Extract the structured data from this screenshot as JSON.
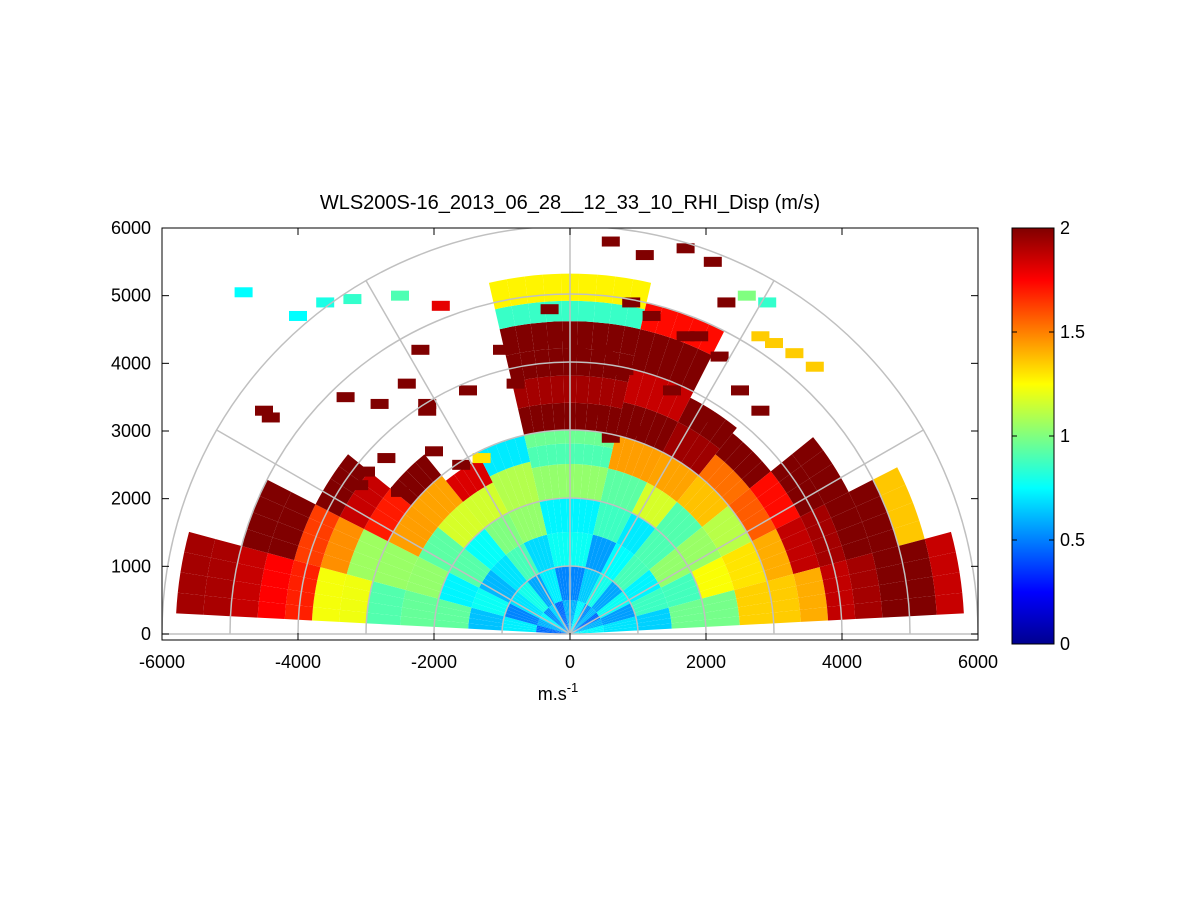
{
  "chart_data": {
    "type": "heatmap",
    "subtype": "polar-RHI",
    "title": "WLS200S-16_2013_06_28__12_33_10_RHI_Disp (m/s)",
    "xlabel": "m.s",
    "xlabel_superscript": "-1",
    "xlim": [
      -6000,
      6000
    ],
    "ylim": [
      0,
      6000
    ],
    "x_ticks": [
      "-6000",
      "-4000",
      "-2000",
      "0",
      "2000",
      "4000",
      "6000"
    ],
    "y_ticks": [
      "0",
      "1000",
      "2000",
      "3000",
      "4000",
      "5000",
      "6000"
    ],
    "x_tick_values": [
      -6000,
      -4000,
      -2000,
      0,
      2000,
      4000,
      6000
    ],
    "y_tick_values": [
      0,
      1000,
      2000,
      3000,
      4000,
      5000,
      6000
    ],
    "polar_grid": {
      "range_rings": [
        1000,
        2000,
        3000,
        4000,
        5000,
        6000
      ],
      "spokes_deg": [
        0,
        30,
        60,
        90,
        120,
        150,
        180
      ],
      "grid_color": "#c0c0c0"
    },
    "colorbar": {
      "colormap": "jet",
      "clim": [
        0,
        2
      ],
      "ticks": [
        "0",
        "0.5",
        "1",
        "1.5",
        "2"
      ],
      "tick_values": [
        0,
        0.5,
        1,
        1.5,
        2
      ]
    },
    "sectors": [
      {
        "az": [
          165,
          177
        ],
        "rings": [
          [
            0,
            0.6
          ],
          [
            500,
            0.65
          ],
          [
            1000,
            0.7
          ],
          [
            1500,
            0.8
          ],
          [
            2000,
            0.95
          ],
          [
            2500,
            1.05
          ],
          [
            3000,
            1.15
          ],
          [
            3400,
            1.3
          ],
          [
            3800,
            1.55
          ],
          [
            4200,
            1.75
          ],
          [
            4600,
            2.0
          ],
          [
            5000,
            1.85
          ],
          [
            5400,
            2.0
          ]
        ]
      },
      {
        "az": [
          153,
          165
        ],
        "rings": [
          [
            0,
            0.6
          ],
          [
            500,
            0.65
          ],
          [
            1000,
            0.7
          ],
          [
            1500,
            0.8
          ],
          [
            2000,
            0.9
          ],
          [
            2500,
            1.05
          ],
          [
            3000,
            1.2
          ],
          [
            3400,
            1.4
          ],
          [
            3800,
            1.7
          ],
          [
            4200,
            2.0
          ],
          [
            4600,
            2.0
          ]
        ]
      },
      {
        "az": [
          141,
          153
        ],
        "rings": [
          [
            0,
            0.6
          ],
          [
            500,
            0.7
          ],
          [
            1000,
            0.75
          ],
          [
            1500,
            0.85
          ],
          [
            2000,
            1.0
          ],
          [
            2500,
            1.3
          ],
          [
            3000,
            1.7
          ],
          [
            3400,
            2.0
          ],
          [
            3800,
            2.0
          ]
        ]
      },
      {
        "az": [
          129,
          141
        ],
        "rings": [
          [
            0,
            0.6
          ],
          [
            500,
            0.65
          ],
          [
            1000,
            0.7
          ],
          [
            1500,
            0.9
          ],
          [
            2000,
            1.1
          ],
          [
            2500,
            1.5
          ],
          [
            3000,
            2.0
          ]
        ]
      },
      {
        "az": [
          117,
          129
        ],
        "rings": [
          [
            0,
            0.6
          ],
          [
            500,
            0.65
          ],
          [
            1000,
            0.75
          ],
          [
            1500,
            1.0
          ],
          [
            2000,
            1.3
          ],
          [
            2500,
            1.75
          ]
        ]
      },
      {
        "az": [
          103,
          117
        ],
        "rings": [
          [
            0,
            0.6
          ],
          [
            500,
            0.65
          ],
          [
            1000,
            0.75
          ],
          [
            1500,
            0.9
          ],
          [
            2000,
            1.1
          ],
          [
            2600,
            0.85
          ]
        ]
      },
      {
        "az": [
          77,
          103
        ],
        "rings": [
          [
            0,
            0.6
          ],
          [
            500,
            0.65
          ],
          [
            1000,
            0.7
          ],
          [
            1500,
            0.8
          ],
          [
            2000,
            0.9
          ],
          [
            2500,
            0.9
          ],
          [
            2800,
            1.1
          ],
          [
            3000,
            2.0
          ],
          [
            3400,
            2.0
          ],
          [
            3800,
            2.0
          ],
          [
            4200,
            2.0
          ],
          [
            4600,
            1.0
          ],
          [
            4900,
            1.2
          ]
        ]
      },
      {
        "az": [
          63,
          77
        ],
        "rings": [
          [
            0,
            0.6
          ],
          [
            500,
            0.65
          ],
          [
            1000,
            0.7
          ],
          [
            1500,
            0.8
          ],
          [
            2000,
            1.0
          ],
          [
            2500,
            1.3
          ],
          [
            3000,
            2.0
          ],
          [
            3500,
            2.0
          ],
          [
            4000,
            2.0
          ],
          [
            4600,
            1.8
          ]
        ]
      },
      {
        "az": [
          51,
          63
        ],
        "rings": [
          [
            0,
            0.6
          ],
          [
            500,
            0.65
          ],
          [
            1000,
            0.75
          ],
          [
            1500,
            0.85
          ],
          [
            2000,
            1.1
          ],
          [
            2500,
            1.5
          ],
          [
            3000,
            1.8
          ],
          [
            3500,
            2.0
          ]
        ]
      },
      {
        "az": [
          39,
          51
        ],
        "rings": [
          [
            0,
            0.55
          ],
          [
            500,
            0.65
          ],
          [
            1000,
            0.75
          ],
          [
            1500,
            0.9
          ],
          [
            2000,
            1.05
          ],
          [
            2500,
            1.3
          ],
          [
            3000,
            1.6
          ],
          [
            3400,
            1.9
          ]
        ]
      },
      {
        "az": [
          27,
          39
        ],
        "rings": [
          [
            0,
            0.6
          ],
          [
            500,
            0.7
          ],
          [
            1000,
            0.8
          ],
          [
            1500,
            0.9
          ],
          [
            2000,
            1.05
          ],
          [
            2500,
            1.25
          ],
          [
            3000,
            1.5
          ],
          [
            3400,
            1.8
          ],
          [
            3800,
            2.0
          ],
          [
            4200,
            2.0
          ]
        ]
      },
      {
        "az": [
          15,
          27
        ],
        "rings": [
          [
            0,
            0.6
          ],
          [
            500,
            0.7
          ],
          [
            1000,
            0.8
          ],
          [
            1500,
            0.95
          ],
          [
            2000,
            1.1
          ],
          [
            2500,
            1.3
          ],
          [
            3000,
            1.55
          ],
          [
            3400,
            1.8
          ],
          [
            3800,
            2.0
          ],
          [
            4200,
            2.0
          ],
          [
            4600,
            2.0
          ],
          [
            5000,
            1.5
          ]
        ]
      },
      {
        "az": [
          3,
          15
        ],
        "rings": [
          [
            0,
            0.6
          ],
          [
            500,
            0.7
          ],
          [
            1000,
            0.8
          ],
          [
            1500,
            0.9
          ],
          [
            2000,
            1.05
          ],
          [
            2500,
            1.2
          ],
          [
            3000,
            1.35
          ],
          [
            3400,
            1.55
          ],
          [
            3800,
            1.8
          ],
          [
            4200,
            2.0
          ],
          [
            4600,
            2.0
          ],
          [
            5000,
            2.0
          ],
          [
            5400,
            2.0
          ]
        ]
      }
    ],
    "sparse_cells": [
      {
        "x": -2500,
        "y": 2100,
        "v": 2.0
      },
      {
        "x": -3100,
        "y": 2200,
        "v": 2.0
      },
      {
        "x": -2700,
        "y": 2600,
        "v": 2.0
      },
      {
        "x": -2000,
        "y": 2700,
        "v": 2.0
      },
      {
        "x": -1600,
        "y": 2500,
        "v": 2.0
      },
      {
        "x": -1300,
        "y": 2600,
        "v": 1.3
      },
      {
        "x": -800,
        "y": 3700,
        "v": 2.0
      },
      {
        "x": -1500,
        "y": 3600,
        "v": 2.0
      },
      {
        "x": -2100,
        "y": 3400,
        "v": 2.0
      },
      {
        "x": -2400,
        "y": 3700,
        "v": 2.0
      },
      {
        "x": -2800,
        "y": 3400,
        "v": 2.0
      },
      {
        "x": -4400,
        "y": 3200,
        "v": 2.0
      },
      {
        "x": -3300,
        "y": 3500,
        "v": 2.0
      },
      {
        "x": -2200,
        "y": 4200,
        "v": 2.0
      },
      {
        "x": -1000,
        "y": 4200,
        "v": 2.0
      },
      {
        "x": -200,
        "y": 4400,
        "v": 2.0
      },
      {
        "x": 100,
        "y": 4200,
        "v": 2.0
      },
      {
        "x": 500,
        "y": 4200,
        "v": 2.0
      },
      {
        "x": 800,
        "y": 3900,
        "v": 2.0
      },
      {
        "x": 400,
        "y": 3300,
        "v": 2.0
      },
      {
        "x": 1200,
        "y": 4700,
        "v": 2.0
      },
      {
        "x": 600,
        "y": 5800,
        "v": 2.0
      },
      {
        "x": 1100,
        "y": 5600,
        "v": 2.0
      },
      {
        "x": 1700,
        "y": 5700,
        "v": 2.0
      },
      {
        "x": 2100,
        "y": 5500,
        "v": 2.0
      },
      {
        "x": 1700,
        "y": 4400,
        "v": 2.0
      },
      {
        "x": 2200,
        "y": 4100,
        "v": 2.0
      },
      {
        "x": 2500,
        "y": 3600,
        "v": 2.0
      },
      {
        "x": 2800,
        "y": 3300,
        "v": 2.0
      },
      {
        "x": 1000,
        "y": 3000,
        "v": 2.0
      },
      {
        "x": 2000,
        "y": 3200,
        "v": 2.0
      },
      {
        "x": 600,
        "y": 2900,
        "v": 2.0
      },
      {
        "x": 2300,
        "y": 4900,
        "v": 2.0
      },
      {
        "x": 1500,
        "y": 3600,
        "v": 2.0
      },
      {
        "x": -4500,
        "y": 3300,
        "v": 2.0
      },
      {
        "x": -3000,
        "y": 2400,
        "v": 2.0
      },
      {
        "x": -2100,
        "y": 3300,
        "v": 2.0
      },
      {
        "x": -300,
        "y": 4800,
        "v": 2.0
      },
      {
        "x": 900,
        "y": 4900,
        "v": 2.0
      },
      {
        "x": 1900,
        "y": 4400,
        "v": 2.0
      },
      {
        "x": -4800,
        "y": 5050,
        "v": 0.75
      },
      {
        "x": -3600,
        "y": 4900,
        "v": 0.8
      },
      {
        "x": -4000,
        "y": 4700,
        "v": 0.75
      },
      {
        "x": -1900,
        "y": 4850,
        "v": 1.8
      },
      {
        "x": 2800,
        "y": 4400,
        "v": 1.35
      },
      {
        "x": 3300,
        "y": 4150,
        "v": 1.35
      },
      {
        "x": 3600,
        "y": 3950,
        "v": 1.35
      },
      {
        "x": 3000,
        "y": 4300,
        "v": 1.35
      },
      {
        "x": 2600,
        "y": 5000,
        "v": 1.0
      },
      {
        "x": 2900,
        "y": 4900,
        "v": 0.85
      },
      {
        "x": -2500,
        "y": 5000,
        "v": 0.9
      },
      {
        "x": -3200,
        "y": 4950,
        "v": 0.85
      }
    ]
  }
}
